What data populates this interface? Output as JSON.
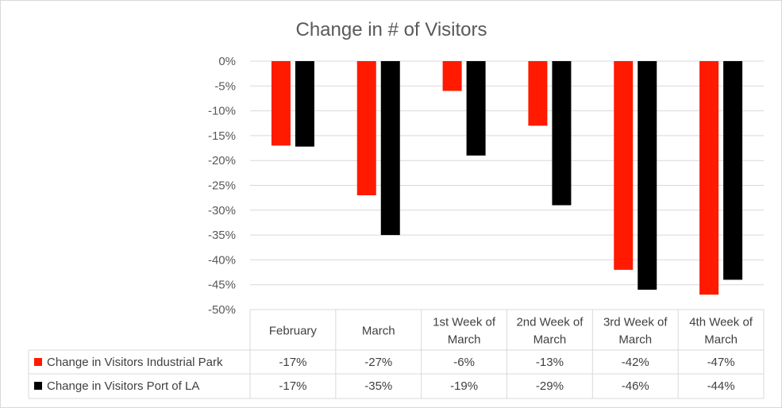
{
  "chart_data": {
    "type": "bar",
    "title": "Change in # of Visitors",
    "categories": [
      [
        "February"
      ],
      [
        "March"
      ],
      [
        "1st Week of",
        "March"
      ],
      [
        "2nd Week of",
        "March"
      ],
      [
        "3rd Week of",
        "March"
      ],
      [
        "4th Week of",
        "March"
      ]
    ],
    "series": [
      {
        "name": "Change in Visitors Industrial Park",
        "color": "#ff1a00",
        "values": [
          -17,
          -27,
          -6,
          -13,
          -42,
          -47
        ],
        "labels": [
          "-17%",
          "-27%",
          "-6%",
          "-13%",
          "-42%",
          "-47%"
        ]
      },
      {
        "name": "Change in Visitors Port of LA",
        "color": "#000000",
        "values": [
          -17.2,
          -35,
          -19,
          -29,
          -46,
          -44
        ],
        "labels": [
          "-17%",
          "-35%",
          "-19%",
          "-29%",
          "-46%",
          "-44%"
        ]
      }
    ],
    "ylim": [
      -50,
      0
    ],
    "yticks": [
      0,
      -5,
      -10,
      -15,
      -20,
      -25,
      -30,
      -35,
      -40,
      -45,
      -50
    ],
    "ytick_labels": [
      "0%",
      "-5%",
      "-10%",
      "-15%",
      "-20%",
      "-25%",
      "-30%",
      "-35%",
      "-40%",
      "-45%",
      "-50%"
    ],
    "grid": true,
    "legend": "data-table"
  }
}
